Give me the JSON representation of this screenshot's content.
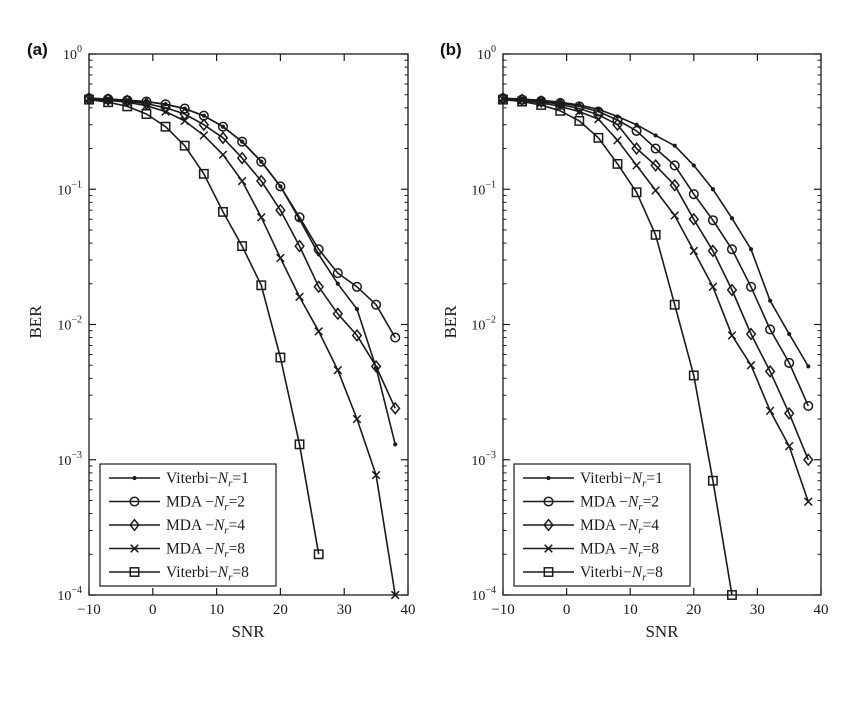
{
  "figure": {
    "background": "#ffffff",
    "ink": "#1b1b1b",
    "panel_a_label": "(a)",
    "panel_b_label": "(b)"
  },
  "chart_data": [
    {
      "type": "line",
      "panel_label": "(a)",
      "title": "",
      "xlabel": "SNR",
      "ylabel": "BER",
      "xlim": [
        -10,
        40
      ],
      "x_ticks": [
        -10,
        0,
        10,
        20,
        30,
        40
      ],
      "y_scale": "log",
      "ylim": [
        0.0001,
        1
      ],
      "y_tick_exponents": [
        0,
        -1,
        -2,
        -3,
        -4
      ],
      "grid": false,
      "legend_position": "lower-left",
      "x": [
        -10,
        -7,
        -4,
        -1,
        2,
        5,
        8,
        11,
        14,
        17,
        20,
        23,
        26,
        29,
        32,
        35,
        38
      ],
      "series": [
        {
          "name": "Viterbi−Nr=1",
          "marker": "dot",
          "values": [
            0.47,
            0.465,
            0.455,
            0.445,
            0.425,
            0.395,
            0.35,
            0.29,
            0.225,
            0.16,
            0.105,
            0.06,
            0.033,
            0.02,
            0.013,
            0.0048,
            0.0013
          ]
        },
        {
          "name": "MDA −Nr=2",
          "marker": "circle",
          "values": [
            0.47,
            0.465,
            0.455,
            0.445,
            0.425,
            0.395,
            0.35,
            0.29,
            0.225,
            0.16,
            0.105,
            0.062,
            0.036,
            0.024,
            0.019,
            0.014,
            0.008
          ]
        },
        {
          "name": "MDA −Nr=4",
          "marker": "diamond",
          "values": [
            0.47,
            0.46,
            0.45,
            0.43,
            0.4,
            0.36,
            0.3,
            0.24,
            0.17,
            0.115,
            0.07,
            0.038,
            0.019,
            0.012,
            0.0083,
            0.0049,
            0.0024
          ]
        },
        {
          "name": "MDA −Nr=8",
          "marker": "x",
          "values": [
            0.465,
            0.455,
            0.44,
            0.415,
            0.375,
            0.32,
            0.25,
            0.18,
            0.115,
            0.062,
            0.031,
            0.016,
            0.0089,
            0.0046,
            0.002,
            0.00077,
            0.0001
          ]
        },
        {
          "name": "Viterbi−Nr=8",
          "marker": "square",
          "values": [
            0.46,
            0.44,
            0.41,
            0.36,
            0.29,
            0.21,
            0.13,
            0.068,
            0.038,
            0.0195,
            0.0057,
            0.0013,
            0.0002,
            null,
            null,
            null,
            null
          ]
        }
      ]
    },
    {
      "type": "line",
      "panel_label": "(b)",
      "title": "",
      "xlabel": "SNR",
      "ylabel": "BER",
      "xlim": [
        -10,
        40
      ],
      "x_ticks": [
        -10,
        0,
        10,
        20,
        30,
        40
      ],
      "y_scale": "log",
      "ylim": [
        0.0001,
        1
      ],
      "y_tick_exponents": [
        0,
        -1,
        -2,
        -3,
        -4
      ],
      "grid": false,
      "legend_position": "lower-left",
      "x": [
        -10,
        -7,
        -4,
        -1,
        2,
        5,
        8,
        11,
        14,
        17,
        20,
        23,
        26,
        29,
        32,
        35,
        38
      ],
      "series": [
        {
          "name": "Viterbi−Nr=1",
          "marker": "dot",
          "values": [
            0.47,
            0.465,
            0.455,
            0.44,
            0.42,
            0.39,
            0.345,
            0.3,
            0.25,
            0.21,
            0.15,
            0.1,
            0.061,
            0.036,
            0.015,
            0.0085,
            0.0049
          ]
        },
        {
          "name": "MDA −Nr=2",
          "marker": "circle",
          "values": [
            0.47,
            0.46,
            0.45,
            0.435,
            0.41,
            0.375,
            0.325,
            0.27,
            0.2,
            0.15,
            0.092,
            0.059,
            0.036,
            0.019,
            0.0092,
            0.0052,
            0.0025
          ]
        },
        {
          "name": "MDA −Nr=4",
          "marker": "diamond",
          "values": [
            0.47,
            0.458,
            0.445,
            0.425,
            0.395,
            0.355,
            0.3,
            0.2,
            0.15,
            0.107,
            0.06,
            0.035,
            0.018,
            0.0085,
            0.0045,
            0.0022,
            0.001
          ]
        },
        {
          "name": "MDA −Nr=8",
          "marker": "x",
          "values": [
            0.465,
            0.452,
            0.435,
            0.41,
            0.375,
            0.33,
            0.23,
            0.15,
            0.098,
            0.064,
            0.035,
            0.019,
            0.0083,
            0.005,
            0.0023,
            0.00126,
            0.00049
          ]
        },
        {
          "name": "Viterbi−Nr=8",
          "marker": "square",
          "values": [
            0.46,
            0.445,
            0.42,
            0.38,
            0.32,
            0.24,
            0.154,
            0.095,
            0.046,
            0.014,
            0.0042,
            0.0007,
            0.0001,
            null,
            null,
            null,
            null
          ]
        }
      ]
    }
  ]
}
